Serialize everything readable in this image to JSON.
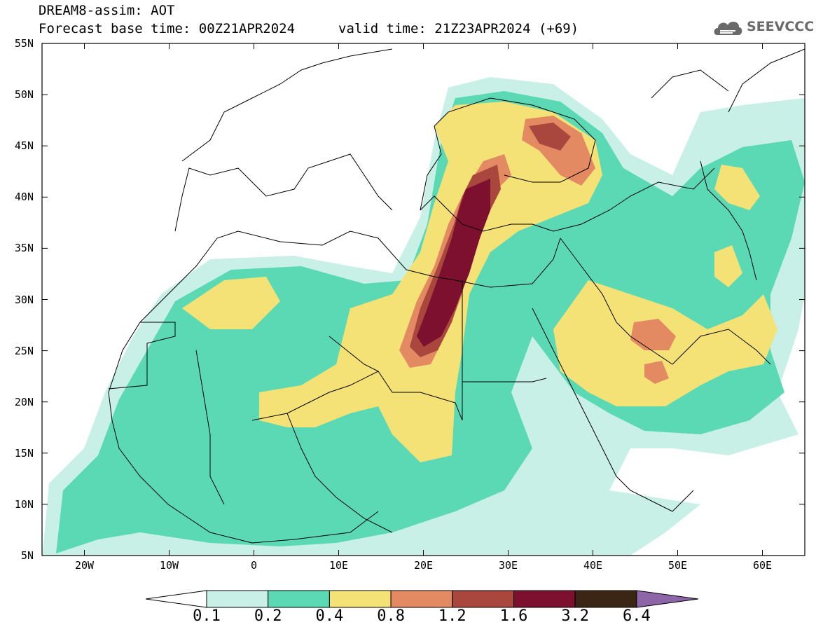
{
  "header": {
    "title": "DREAM8-assim: AOT",
    "base_time": "Forecast base time: 00Z21APR2024",
    "valid_time": "valid time: 21Z23APR2024 (+69)"
  },
  "logo": {
    "text": "SEEVCCC",
    "icon": "cloud-icon"
  },
  "map": {
    "lat_labels": [
      "55N",
      "50N",
      "45N",
      "40N",
      "35N",
      "30N",
      "25N",
      "20N",
      "15N",
      "10N",
      "5N"
    ],
    "lon_labels": [
      "20W",
      "10W",
      "0",
      "10E",
      "20E",
      "30E",
      "40E",
      "50E",
      "60E"
    ],
    "lon_range": [
      -25,
      65
    ],
    "lat_range": [
      5,
      55
    ]
  },
  "colorbar": {
    "labels": [
      "0.1",
      "0.2",
      "0.4",
      "0.8",
      "1.2",
      "1.6",
      "3.2",
      "6.4"
    ],
    "colors": [
      "#ffffff",
      "#c8f0e6",
      "#5ad9b4",
      "#f5e277",
      "#e38a62",
      "#a9463e",
      "#7d0f2f",
      "#3b2616",
      "#8e65a8"
    ]
  },
  "field_colors": {
    "lvl1": "#c8f0e6",
    "lvl2": "#5ad9b4",
    "lvl3": "#f5e277",
    "lvl4": "#e38a62",
    "lvl5": "#a9463e",
    "lvl6": "#7d0f2f"
  }
}
